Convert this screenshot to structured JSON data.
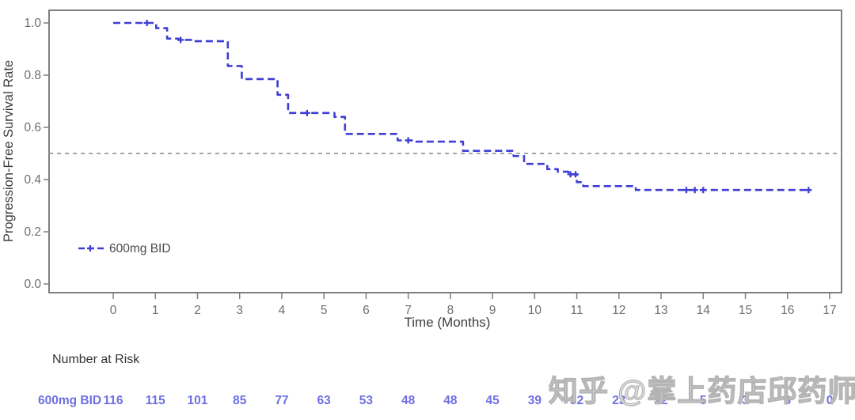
{
  "chart_data": {
    "type": "line",
    "subtype": "kaplan-meier-step",
    "title": "",
    "xlabel": "Time (Months)",
    "ylabel": "Progression-Free Survival Rate",
    "xlim": [
      0,
      17
    ],
    "ylim": [
      0.0,
      1.0
    ],
    "x_ticks": [
      0,
      1,
      2,
      3,
      4,
      5,
      6,
      7,
      8,
      9,
      10,
      11,
      12,
      13,
      14,
      15,
      16,
      17
    ],
    "y_ticks": [
      "0.0",
      "0.2",
      "0.4",
      "0.6",
      "0.8",
      "1.0"
    ],
    "grid": false,
    "legend_position": "lower-left",
    "reference_line_y": 0.5,
    "colors": {
      "curve": "#3e3ed6",
      "censor": "#3e3ed6",
      "axis": "#7f7f7f",
      "tick_label": "#6e6e6e",
      "reference_line": "#9a9a9a",
      "risk_text": "#6e6ee4",
      "watermark": "#c8c8c8"
    },
    "series": [
      {
        "name": "600mg BID",
        "line_style": "dashed",
        "steps": [
          [
            0,
            1.0
          ],
          [
            1.02,
            1.0
          ],
          [
            1.02,
            0.98
          ],
          [
            1.28,
            0.98
          ],
          [
            1.28,
            0.94
          ],
          [
            1.55,
            0.94
          ],
          [
            1.55,
            0.935
          ],
          [
            1.9,
            0.935
          ],
          [
            1.9,
            0.93
          ],
          [
            2.72,
            0.93
          ],
          [
            2.72,
            0.835
          ],
          [
            3.05,
            0.835
          ],
          [
            3.05,
            0.785
          ],
          [
            3.9,
            0.785
          ],
          [
            3.9,
            0.725
          ],
          [
            4.15,
            0.725
          ],
          [
            4.15,
            0.655
          ],
          [
            5.25,
            0.655
          ],
          [
            5.25,
            0.64
          ],
          [
            5.5,
            0.64
          ],
          [
            5.5,
            0.575
          ],
          [
            6.75,
            0.575
          ],
          [
            6.75,
            0.55
          ],
          [
            7.15,
            0.55
          ],
          [
            7.15,
            0.545
          ],
          [
            8.3,
            0.545
          ],
          [
            8.3,
            0.51
          ],
          [
            9.5,
            0.51
          ],
          [
            9.5,
            0.49
          ],
          [
            9.75,
            0.49
          ],
          [
            9.75,
            0.46
          ],
          [
            10.3,
            0.46
          ],
          [
            10.3,
            0.44
          ],
          [
            10.55,
            0.44
          ],
          [
            10.55,
            0.43
          ],
          [
            10.8,
            0.43
          ],
          [
            10.8,
            0.42
          ],
          [
            11.0,
            0.42
          ],
          [
            11.0,
            0.39
          ],
          [
            11.15,
            0.39
          ],
          [
            11.15,
            0.375
          ],
          [
            12.4,
            0.375
          ],
          [
            12.4,
            0.36
          ],
          [
            16.55,
            0.36
          ]
        ],
        "censor_marks": [
          [
            0.8,
            1.0
          ],
          [
            1.6,
            0.935
          ],
          [
            4.6,
            0.655
          ],
          [
            7.0,
            0.55
          ],
          [
            10.85,
            0.42
          ],
          [
            10.97,
            0.42
          ],
          [
            13.6,
            0.36
          ],
          [
            13.8,
            0.36
          ],
          [
            14.0,
            0.36
          ],
          [
            16.5,
            0.36
          ]
        ]
      }
    ]
  },
  "legend": {
    "label": "600mg BID"
  },
  "number_at_risk": {
    "title": "Number at Risk",
    "rows": [
      {
        "label": "600mg BID",
        "values": [
          116,
          115,
          101,
          85,
          77,
          63,
          53,
          48,
          48,
          45,
          39,
          32,
          23,
          22,
          5,
          3,
          3,
          0
        ]
      }
    ]
  },
  "watermark": {
    "text": "知乎 @掌上药店邱药师"
  }
}
